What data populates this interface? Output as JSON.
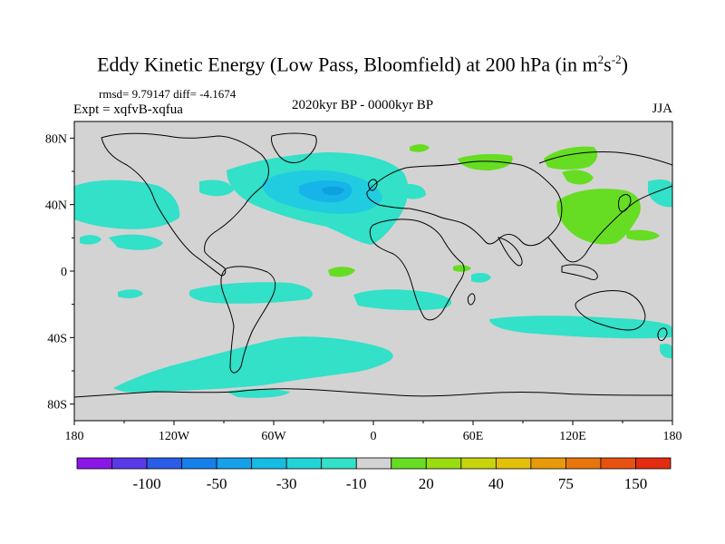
{
  "header": {
    "title_main": "Eddy Kinetic Energy (Low Pass, Bloomfield) at 200 hPa (in m",
    "title_sup1": "2",
    "title_mid": "s",
    "title_sup2": "-2",
    "title_end": ")",
    "stats": "rmsd= 9.79147 diff= -4.1674",
    "experiment": "Expt = xqfvB-xqfua",
    "period": "2020kyr BP - 0000kyr BP",
    "season": "JJA"
  },
  "colors": {
    "land_background": "#d3d3d3",
    "coastline": "#000000",
    "neg_10_20": "#33e0c8",
    "neg_20_30": "#22cce0",
    "neg_30_40": "#16b4e8",
    "pos_10_20": "#66dd22"
  },
  "chart_data": {
    "type": "heatmap",
    "title": "Eddy Kinetic Energy (Low Pass, Bloomfield) at 200 hPa (in m2s-2)",
    "x_ticks": [
      "180",
      "120W",
      "60W",
      "0",
      "60E",
      "120E",
      "180"
    ],
    "y_ticks": [
      "80N",
      "40N",
      "0",
      "40S",
      "80S"
    ],
    "xlim": [
      -180,
      180
    ],
    "ylim": [
      -90,
      90
    ],
    "colorbar": {
      "labels": [
        "-100",
        "-50",
        "-30",
        "-10",
        "20",
        "40",
        "75",
        "150"
      ],
      "colors": [
        "#8a16e8",
        "#5a3ae8",
        "#2a5ce8",
        "#1680ea",
        "#16a0ea",
        "#16bce4",
        "#22d4d8",
        "#33e0c8",
        "#d3d3d3",
        "#66dd22",
        "#99dd11",
        "#c8d40c",
        "#e4c00a",
        "#e89a0a",
        "#e8760c",
        "#e85210",
        "#e42c10"
      ]
    },
    "regions": [
      {
        "label": "North Atlantic negative anomaly",
        "lon_range": [
          -90,
          20
        ],
        "lat_range": [
          25,
          65
        ],
        "value_range": "-30 to -10"
      },
      {
        "label": "North Atlantic core minimum",
        "lon_range": [
          -40,
          -10
        ],
        "lat_range": [
          35,
          55
        ],
        "value_range": "-40 to -30"
      },
      {
        "label": "North Pacific negative anomaly",
        "lon_range": [
          -180,
          -120
        ],
        "lat_range": [
          20,
          55
        ],
        "value_range": "-20 to -10"
      },
      {
        "label": "Southern Ocean negative belt",
        "lon_range": [
          -160,
          20
        ],
        "lat_range": [
          -80,
          -40
        ],
        "value_range": "-20 to -10"
      },
      {
        "label": "Subtropical south negative bands",
        "lon_range": [
          -150,
          50
        ],
        "lat_range": [
          -25,
          -10
        ],
        "value_range": "-20 to -10"
      },
      {
        "label": "South Indian/Australian negative band",
        "lon_range": [
          60,
          180
        ],
        "lat_range": [
          -40,
          -30
        ],
        "value_range": "-20 to -10"
      },
      {
        "label": "East Asia positive anomaly",
        "lon_range": [
          100,
          165
        ],
        "lat_range": [
          20,
          50
        ],
        "value_range": "10 to 20"
      },
      {
        "label": "North Asia positive anomaly",
        "lon_range": [
          100,
          140
        ],
        "lat_range": [
          60,
          75
        ],
        "value_range": "10 to 20"
      },
      {
        "label": "Arctic Siberia positive anomaly",
        "lon_range": [
          50,
          90
        ],
        "lat_range": [
          65,
          75
        ],
        "value_range": "10 to 20"
      }
    ]
  }
}
